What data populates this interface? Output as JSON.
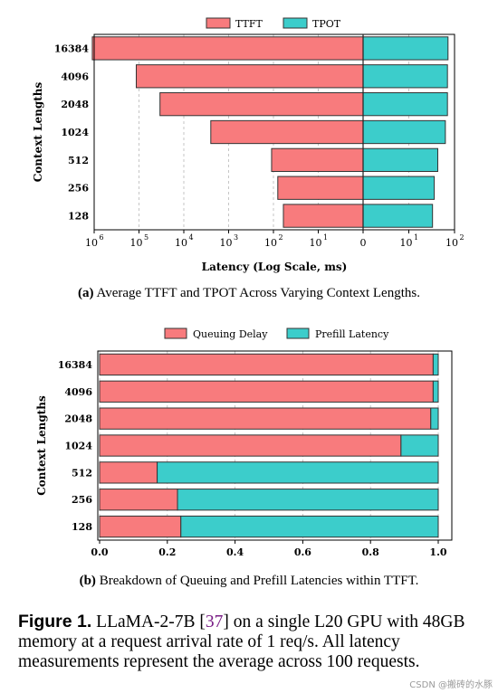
{
  "chart_data": [
    {
      "type": "bar",
      "orientation": "horizontal",
      "categories": [
        "16384",
        "4096",
        "2048",
        "1024",
        "512",
        "256",
        "128"
      ],
      "series": [
        {
          "name": "TTFT",
          "values": [
            1100000,
            115000,
            34000,
            2500,
            110,
            80,
            60
          ],
          "color": "#f87b7d"
        },
        {
          "name": "TPOT",
          "values": [
            72,
            70,
            70,
            63,
            43,
            36,
            33
          ],
          "color": "#3ccdcb"
        }
      ],
      "xlabel": "Latency (Log Scale, ms)",
      "ylabel": "Context Lengths",
      "x_scale": "symmetric-log",
      "xlim_left": [
        0,
        1000000
      ],
      "xlim_right": [
        0,
        100
      ],
      "xticks_left": [
        "10",
        "10",
        "10",
        "10",
        "10",
        "10"
      ],
      "xticks_left_exp": [
        "6",
        "5",
        "4",
        "3",
        "2",
        "1"
      ],
      "xticks_right": [
        "10",
        "10"
      ],
      "xticks_right_exp": [
        "1",
        "2"
      ],
      "zero_label": "0",
      "grid": "vertical-dashed",
      "legend_position": "top-center"
    },
    {
      "type": "bar",
      "orientation": "horizontal",
      "stacked": true,
      "categories": [
        "16384",
        "4096",
        "2048",
        "1024",
        "512",
        "256",
        "128"
      ],
      "series": [
        {
          "name": "Queuing Delay",
          "values": [
            0.985,
            0.985,
            0.978,
            0.89,
            0.17,
            0.23,
            0.24
          ],
          "color": "#f87b7d"
        },
        {
          "name": "Prefill Latency",
          "values": [
            0.015,
            0.015,
            0.022,
            0.11,
            0.83,
            0.77,
            0.76
          ],
          "color": "#3ccdcb"
        }
      ],
      "xlabel": "",
      "ylabel": "Context Lengths",
      "xlim": [
        0,
        1.0
      ],
      "xticks": [
        "0.0",
        "0.2",
        "0.4",
        "0.6",
        "0.8",
        "1.0"
      ],
      "grid": "vertical-dashed",
      "legend_position": "top-center"
    }
  ],
  "captions": {
    "a_label": "(a)",
    "a_text": "Average TTFT and TPOT Across Varying Context Lengths.",
    "b_label": "(b)",
    "b_text": "Breakdown of Queuing and Prefill Latencies within TTFT."
  },
  "figure": {
    "label": "Figure 1.",
    "text_before": "LLaMA-2-7B [",
    "ref": "37",
    "text_after": "] on a single L20 GPU with 48GB memory at a request arrival rate of 1 req/s. All latency measurements represent the average across 100 requests."
  },
  "watermark": "CSDN @搬砖的水豚"
}
